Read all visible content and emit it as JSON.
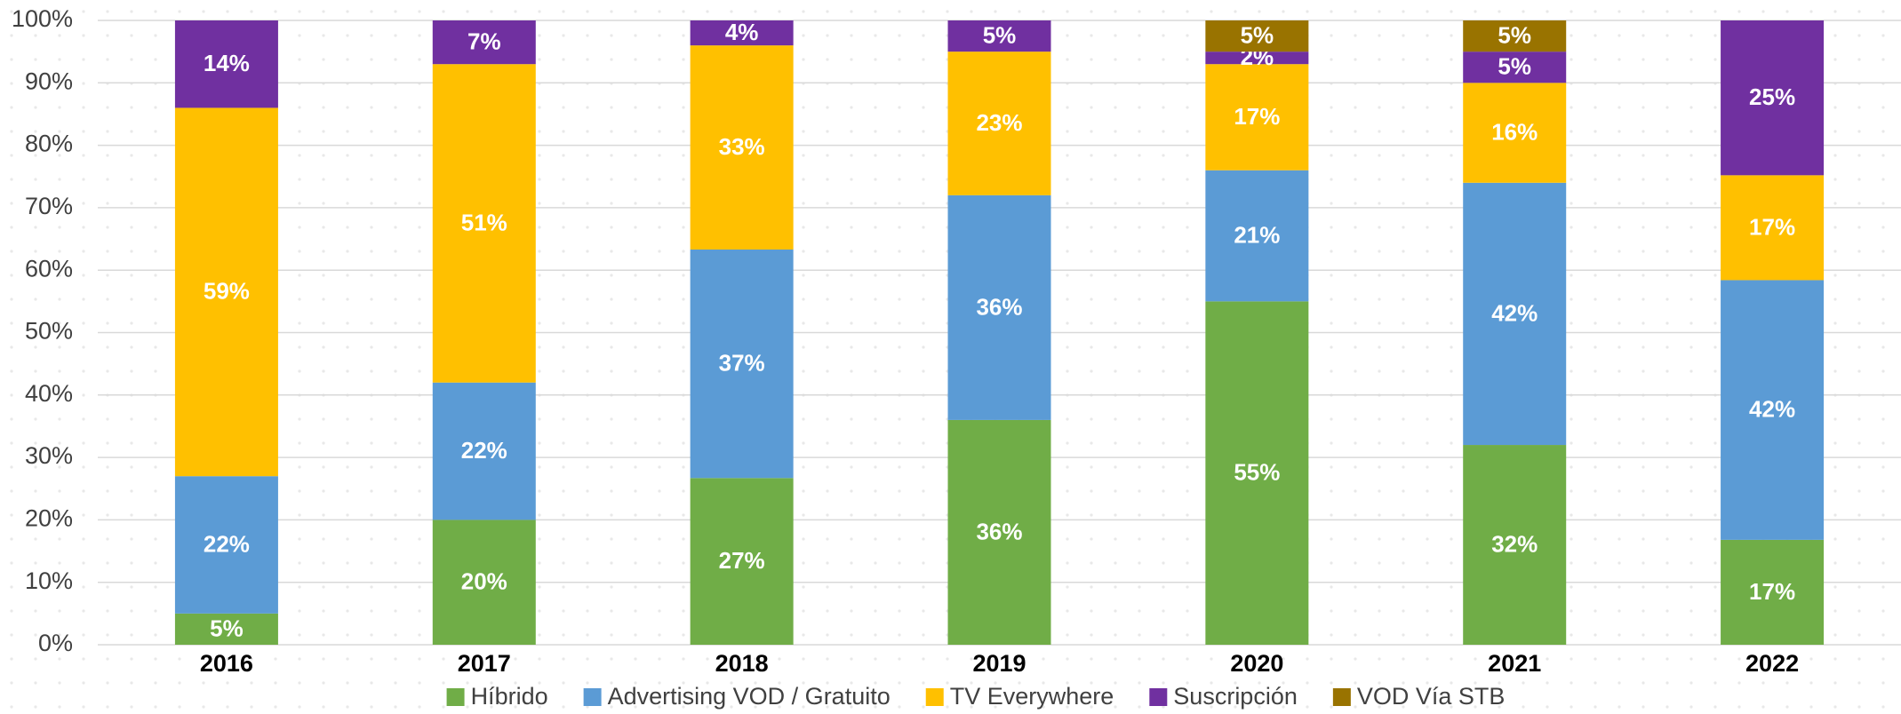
{
  "chart_data": {
    "type": "stacked_bar",
    "categories": [
      "2016",
      "2017",
      "2018",
      "2019",
      "2020",
      "2021",
      "2022"
    ],
    "series": [
      {
        "name": "Híbrido",
        "color": "#70ad47",
        "values": [
          5,
          20,
          26.7,
          36,
          55,
          32,
          16.8
        ],
        "value_labels": [
          "5%",
          "20%",
          "27%",
          "36%",
          "55%",
          "32%",
          "17%"
        ]
      },
      {
        "name": "Advertising VOD / Gratuito",
        "color": "#5b9bd5",
        "values": [
          22,
          22,
          36.6,
          36,
          21,
          42,
          41.6
        ],
        "value_labels": [
          "22%",
          "22%",
          "37%",
          "36%",
          "21%",
          "42%",
          "42%"
        ]
      },
      {
        "name": "TV Everywhere",
        "color": "#ffc000",
        "values": [
          59,
          51,
          32.7,
          23,
          17,
          16,
          16.8
        ],
        "value_labels": [
          "59%",
          "51%",
          "33%",
          "23%",
          "17%",
          "16%",
          "17%"
        ]
      },
      {
        "name": "Suscripción",
        "color": "#7030a0",
        "values": [
          14,
          7,
          4,
          5,
          2,
          5,
          24.8
        ],
        "value_labels": [
          "14%",
          "7%",
          "4%",
          "5%",
          "2%",
          "5%",
          "25%"
        ]
      },
      {
        "name": "VOD Vía STB",
        "color": "#997300",
        "values": [
          null,
          null,
          null,
          null,
          5,
          5,
          null
        ],
        "value_labels": [
          null,
          null,
          null,
          null,
          "5%",
          "5%",
          null
        ]
      }
    ],
    "ylim": [
      0,
      100
    ],
    "yticks": [
      {
        "value": 0,
        "label": "0%"
      },
      {
        "value": 10,
        "label": "10%"
      },
      {
        "value": 20,
        "label": "20%"
      },
      {
        "value": 30,
        "label": "30%"
      },
      {
        "value": 40,
        "label": "40%"
      },
      {
        "value": 50,
        "label": "50%"
      },
      {
        "value": 60,
        "label": "60%"
      },
      {
        "value": 70,
        "label": "70%"
      },
      {
        "value": 80,
        "label": "80%"
      },
      {
        "value": 90,
        "label": "90%"
      },
      {
        "value": 100,
        "label": "100%"
      }
    ],
    "grid": true,
    "legend": "bottom"
  }
}
